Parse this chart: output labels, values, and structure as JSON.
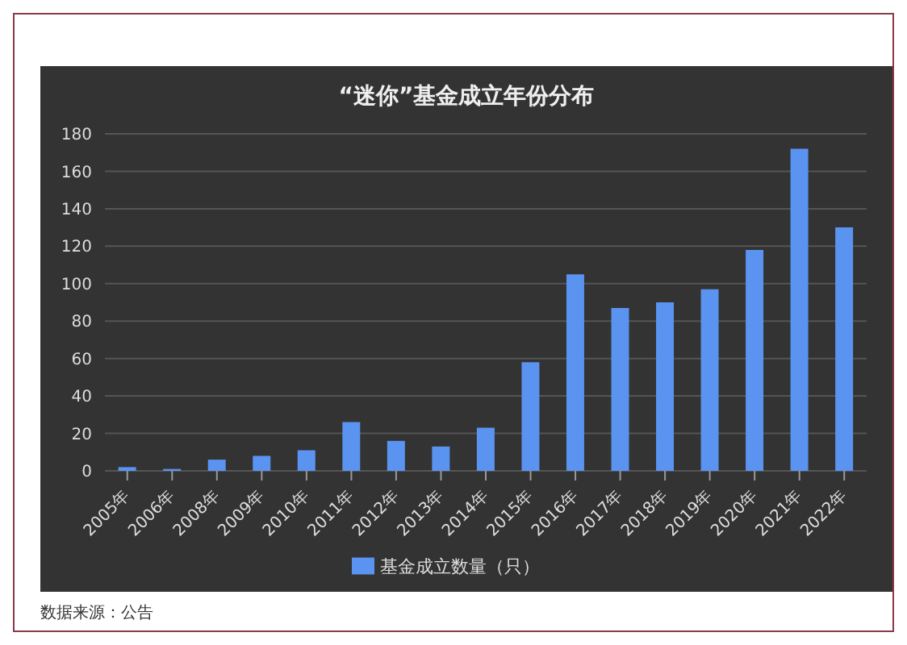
{
  "chart_data": {
    "type": "bar",
    "title": "“迷你”基金成立年份分布",
    "categories": [
      "2005年",
      "2006年",
      "2008年",
      "2009年",
      "2010年",
      "2011年",
      "2012年",
      "2013年",
      "2014年",
      "2015年",
      "2016年",
      "2017年",
      "2018年",
      "2019年",
      "2020年",
      "2021年",
      "2022年"
    ],
    "series": [
      {
        "name": "基金成立数量（只）",
        "color": "#5b93f0",
        "values": [
          2,
          1,
          6,
          8,
          11,
          26,
          16,
          13,
          23,
          58,
          105,
          87,
          90,
          97,
          118,
          172,
          130
        ]
      }
    ],
    "ylim": [
      0,
      180
    ],
    "yticks": [
      0,
      20,
      40,
      60,
      80,
      100,
      120,
      140,
      160,
      180
    ],
    "grid": "y",
    "legend": "bottom",
    "annotations": [
      "数据来源：公告"
    ]
  }
}
